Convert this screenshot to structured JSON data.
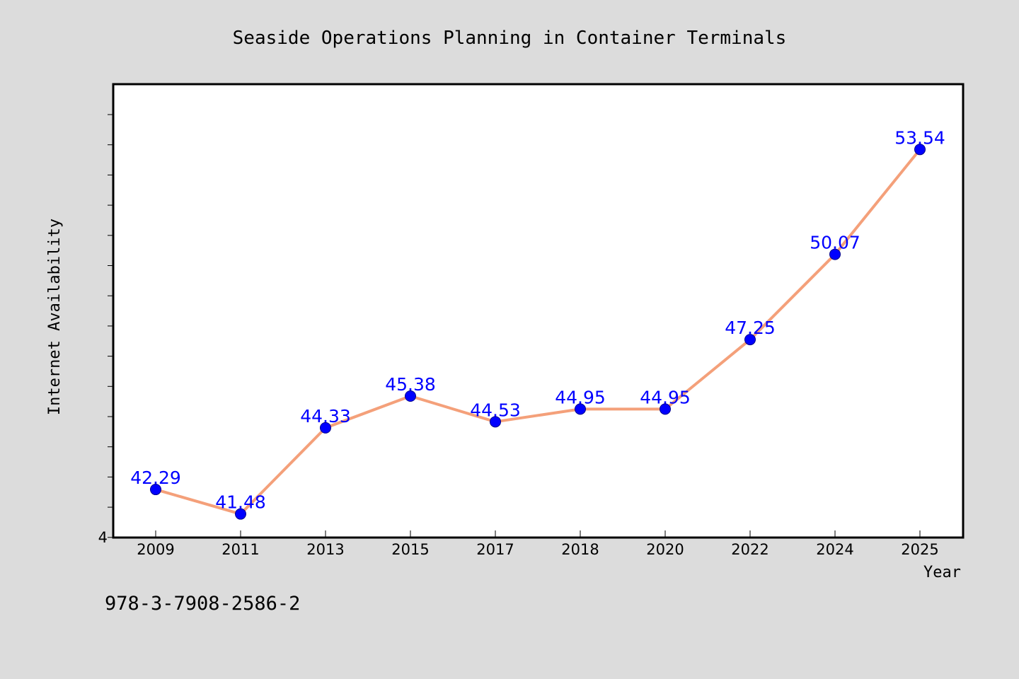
{
  "chart_data": {
    "type": "line",
    "title": "Seaside Operations Planning in Container Terminals",
    "xlabel": "Year",
    "ylabel": "Internet Availability",
    "categories": [
      "2009",
      "2011",
      "2013",
      "2015",
      "2017",
      "2018",
      "2020",
      "2022",
      "2024",
      "2025"
    ],
    "series": [
      {
        "values": [
          42.29,
          41.48,
          44.33,
          45.38,
          44.53,
          44.95,
          44.95,
          47.25,
          50.07,
          53.54
        ]
      }
    ],
    "data_labels": [
      "42.29",
      "41.48",
      "44.33",
      "45.38",
      "44.53",
      "44.95",
      "44.95",
      "47.25",
      "50.07",
      "53.54"
    ],
    "ylim": [
      40.7,
      55.7
    ],
    "y_tick_label": "4",
    "grid": false,
    "line_color": "#f4a07a",
    "marker_color": "#0000ff",
    "label_color": "#0000ff"
  },
  "footer": {
    "isbn": "978-3-7908-2586-2"
  },
  "colors": {
    "background": "#dcdcdc",
    "plot_background": "#ffffff"
  }
}
